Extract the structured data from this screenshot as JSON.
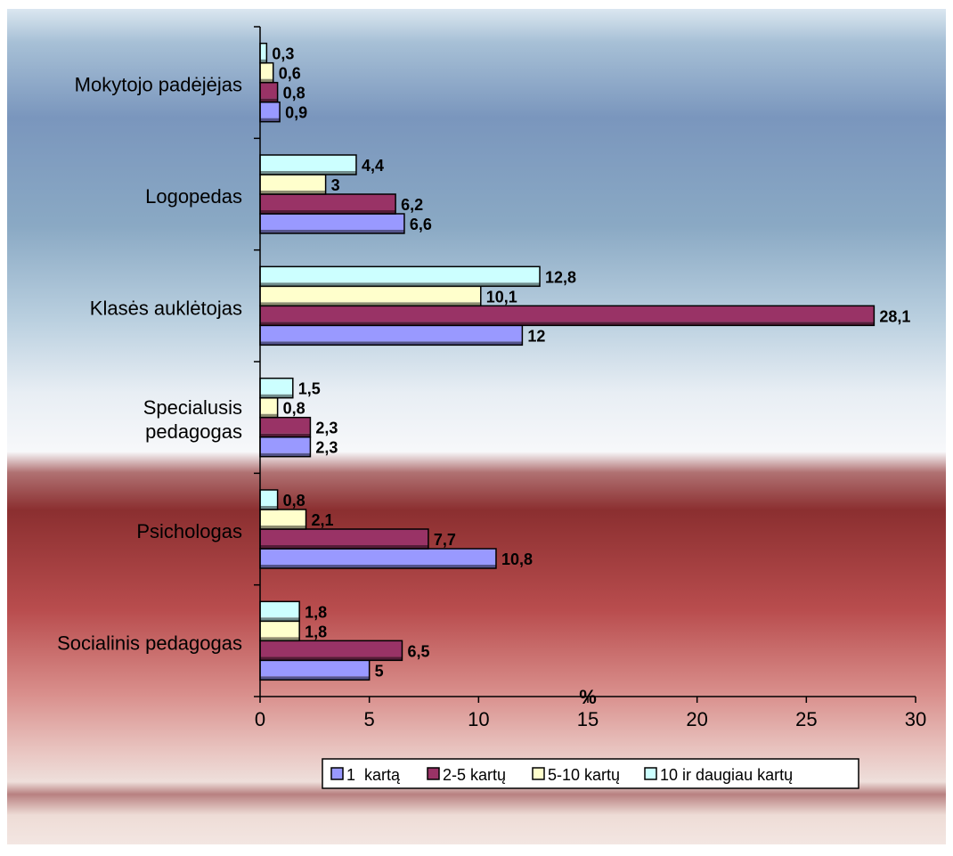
{
  "chart_data": {
    "type": "bar",
    "orientation": "horizontal",
    "title": "",
    "xlabel": "%",
    "ylabel": "",
    "xlim": [
      0,
      30
    ],
    "x_ticks": [
      0,
      5,
      10,
      15,
      20,
      25,
      30
    ],
    "grid": false,
    "legend_position": "bottom",
    "categories": [
      [
        "Socialinis pedagogas"
      ],
      [
        "Psichologas"
      ],
      [
        "Specialusis",
        "pedagogas"
      ],
      [
        "Klasės auklėtojas"
      ],
      [
        "Logopedas"
      ],
      [
        "Mokytojo padėjėjas"
      ]
    ],
    "series": [
      {
        "name": "1  kartą",
        "color": "#9999ff",
        "values": [
          5,
          10.8,
          2.3,
          12,
          6.6,
          0.9
        ],
        "labels": [
          "5",
          "10,8",
          "2,3",
          "12",
          "6,6",
          "0,9"
        ]
      },
      {
        "name": "2-5 kartų",
        "color": "#993366",
        "values": [
          6.5,
          7.7,
          2.3,
          28.1,
          6.2,
          0.8
        ],
        "labels": [
          "6,5",
          "7,7",
          "2,3",
          "28,1",
          "6,2",
          "0,8"
        ]
      },
      {
        "name": "5-10 kartų",
        "color": "#ffffcc",
        "values": [
          1.8,
          2.1,
          0.8,
          10.1,
          3,
          0.6
        ],
        "labels": [
          "1,8",
          "2,1",
          "0,8",
          "10,1",
          "3",
          "0,6"
        ]
      },
      {
        "name": "10 ir daugiau kartų",
        "color": "#ccffff",
        "values": [
          1.8,
          0.8,
          1.5,
          12.8,
          4.4,
          0.3
        ],
        "labels": [
          "1,8",
          "0,8",
          "1,5",
          "12,8",
          "4,4",
          "0,3"
        ]
      }
    ]
  }
}
